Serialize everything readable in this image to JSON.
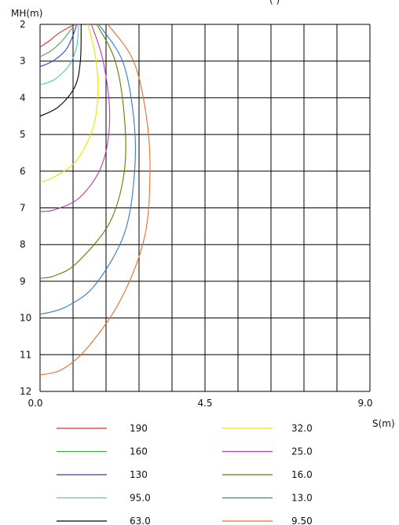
{
  "chart_data": {
    "type": "line",
    "title": "",
    "top_right_text": "(       )",
    "xlabel": "S(m)",
    "ylabel": "MH(m)",
    "xlim": [
      0.0,
      9.0
    ],
    "ylim": [
      2,
      12
    ],
    "y_inverted": true,
    "grid": true,
    "x_ticks": [
      "0.0",
      "4.5",
      "9.0"
    ],
    "y_ticks": [
      "2",
      "3",
      "4",
      "5",
      "6",
      "7",
      "8",
      "9",
      "10",
      "11",
      "12"
    ],
    "legend_position": "bottom",
    "series": [
      {
        "name": "190",
        "color": "#e32b2b",
        "points": [
          [
            0.95,
            2.0
          ],
          [
            0.75,
            2.1
          ],
          [
            0.5,
            2.25
          ],
          [
            0.25,
            2.45
          ],
          [
            0.0,
            2.62
          ]
        ]
      },
      {
        "name": "160",
        "color": "#3fae3f",
        "points": [
          [
            0.95,
            2.0
          ],
          [
            0.8,
            2.2
          ],
          [
            0.6,
            2.45
          ],
          [
            0.3,
            2.72
          ],
          [
            0.0,
            2.88
          ]
        ]
      },
      {
        "name": "130",
        "color": "#2f3fc8",
        "points": [
          [
            1.0,
            2.0
          ],
          [
            0.9,
            2.3
          ],
          [
            0.7,
            2.7
          ],
          [
            0.35,
            3.0
          ],
          [
            0.0,
            3.15
          ]
        ]
      },
      {
        "name": "95.0",
        "color": "#46c8d8",
        "points": [
          [
            1.05,
            2.0
          ],
          [
            1.0,
            2.6
          ],
          [
            0.8,
            3.1
          ],
          [
            0.4,
            3.5
          ],
          [
            0.0,
            3.65
          ]
        ]
      },
      {
        "name": "63.0",
        "color": "#000000",
        "points": [
          [
            1.12,
            2.0
          ],
          [
            1.1,
            3.0
          ],
          [
            0.95,
            3.7
          ],
          [
            0.5,
            4.25
          ],
          [
            0.0,
            4.5
          ]
        ]
      },
      {
        "name": "32.0",
        "color": "#e6e600",
        "points": [
          [
            1.3,
            2.0
          ],
          [
            1.5,
            2.8
          ],
          [
            1.58,
            3.8
          ],
          [
            1.45,
            4.8
          ],
          [
            1.0,
            5.7
          ],
          [
            0.4,
            6.15
          ],
          [
            0.0,
            6.3
          ]
        ]
      },
      {
        "name": "25.0",
        "color": "#b43cb4",
        "points": [
          [
            1.4,
            2.0
          ],
          [
            1.72,
            3.0
          ],
          [
            1.9,
            4.5
          ],
          [
            1.7,
            5.8
          ],
          [
            1.1,
            6.7
          ],
          [
            0.4,
            7.05
          ],
          [
            0.0,
            7.1
          ]
        ]
      },
      {
        "name": "16.0",
        "color": "#6b7a00",
        "points": [
          [
            1.55,
            2.0
          ],
          [
            2.05,
            3.0
          ],
          [
            2.3,
            4.5
          ],
          [
            2.3,
            6.0
          ],
          [
            1.9,
            7.4
          ],
          [
            1.0,
            8.5
          ],
          [
            0.4,
            8.85
          ],
          [
            0.0,
            8.92
          ]
        ]
      },
      {
        "name": "13.0",
        "color": "#2f7acf",
        "points": [
          [
            1.6,
            2.0
          ],
          [
            2.25,
            3.0
          ],
          [
            2.55,
            4.5
          ],
          [
            2.58,
            6.0
          ],
          [
            2.3,
            7.7
          ],
          [
            1.5,
            9.1
          ],
          [
            0.7,
            9.7
          ],
          [
            0.0,
            9.9
          ]
        ]
      },
      {
        "name": "9.50",
        "color": "#f06a2a",
        "points": [
          [
            1.85,
            2.0
          ],
          [
            2.55,
            3.0
          ],
          [
            2.9,
            4.5
          ],
          [
            3.0,
            6.0
          ],
          [
            2.85,
            7.8
          ],
          [
            2.2,
            9.5
          ],
          [
            1.3,
            10.8
          ],
          [
            0.6,
            11.4
          ],
          [
            0.0,
            11.55
          ]
        ]
      }
    ]
  }
}
